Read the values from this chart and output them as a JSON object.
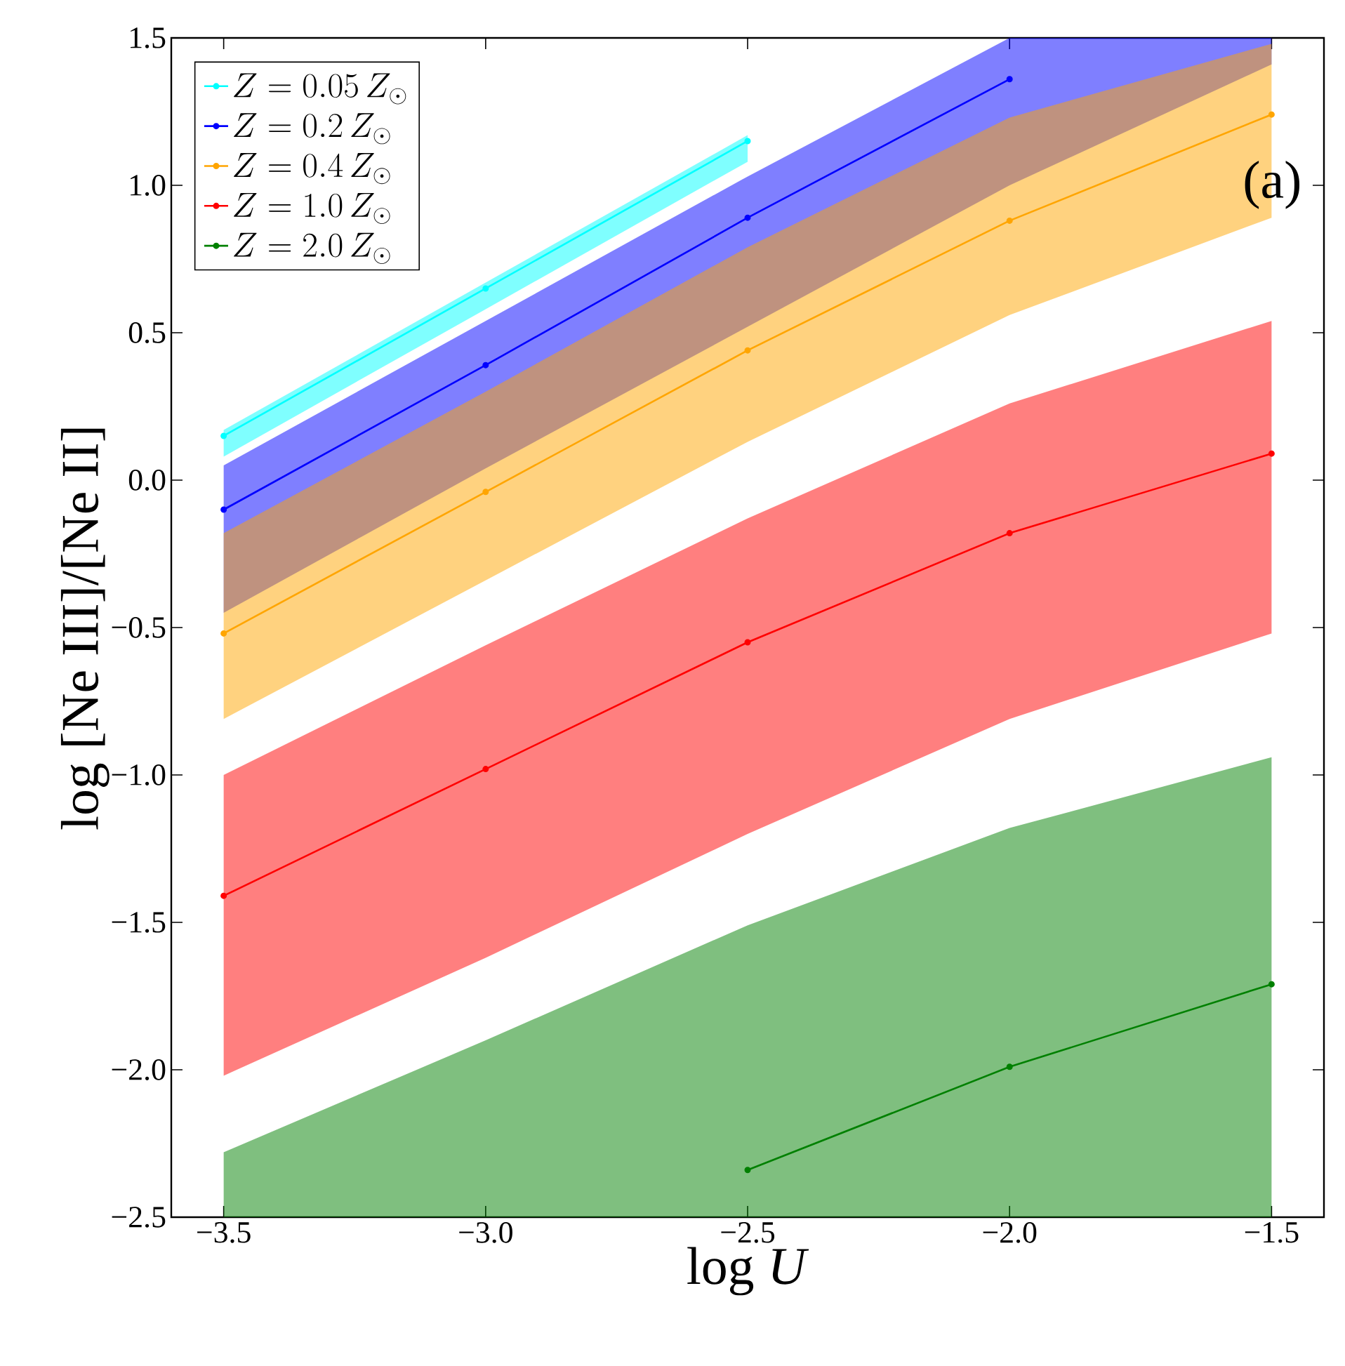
{
  "chart_data": {
    "type": "line",
    "xlabel": "log *U*",
    "ylabel": "log [Ne III]/[Ne II]",
    "x": [
      -3.5,
      -3.0,
      -2.5,
      -2.0,
      -1.5
    ],
    "series": [
      {
        "name": "Z=0.05\\,Z_\\odot",
        "color": "#00ffff",
        "x": [
          -3.5,
          -3.0,
          -2.5
        ],
        "values": [
          0.15,
          0.65,
          1.15
        ],
        "lower": [
          0.08,
          0.58,
          1.08
        ],
        "upper": [
          0.17,
          0.67,
          1.17
        ]
      },
      {
        "name": "Z=0.2\\,Z_\\odot",
        "color": "#0000ff",
        "values": [
          -0.1,
          0.39,
          0.89,
          1.36,
          null
        ],
        "lower": [
          -0.45,
          0.04,
          0.52,
          1.0,
          1.41
        ],
        "upper": [
          0.05,
          0.54,
          1.03,
          1.5,
          1.5
        ]
      },
      {
        "name": "Z=0.4\\,Z_\\odot",
        "color": "#ffa500",
        "values": [
          -0.52,
          -0.04,
          0.44,
          0.88,
          1.24
        ],
        "lower": [
          -0.81,
          -0.34,
          0.13,
          0.56,
          0.89
        ],
        "upper": [
          -0.18,
          0.3,
          0.79,
          1.23,
          1.48
        ]
      },
      {
        "name": "Z=1.0\\,Z_\\odot",
        "color": "#ff0000",
        "values": [
          -1.41,
          -0.98,
          -0.55,
          -0.18,
          0.09
        ],
        "lower": [
          -2.02,
          -1.62,
          -1.2,
          -0.81,
          -0.52
        ],
        "upper": [
          -1.0,
          -0.56,
          -0.13,
          0.26,
          0.54
        ]
      },
      {
        "name": "Z=2.0\\,Z_\\odot",
        "color": "#008000",
        "values": [
          null,
          null,
          -2.34,
          -1.99,
          -1.71
        ],
        "lower": [
          -2.5,
          -2.5,
          -2.5,
          -2.5,
          -2.5
        ],
        "upper": [
          -2.28,
          -1.9,
          -1.51,
          -1.18,
          -0.94
        ]
      }
    ],
    "xlim": [
      -3.6,
      -1.4
    ],
    "ylim": [
      -2.5,
      1.5
    ],
    "xticks": [
      {
        "value": -3.5,
        "label": "−3.5"
      },
      {
        "value": -3.0,
        "label": "−3.0"
      },
      {
        "value": -2.5,
        "label": "−2.5"
      },
      {
        "value": -2.0,
        "label": "−2.0"
      },
      {
        "value": -1.5,
        "label": "−1.5"
      }
    ],
    "yticks": [
      {
        "value": -2.5,
        "label": "−2.5"
      },
      {
        "value": -2.0,
        "label": "−2.0"
      },
      {
        "value": -1.5,
        "label": "−1.5"
      },
      {
        "value": -1.0,
        "label": "−1.0"
      },
      {
        "value": -0.5,
        "label": "−0.5"
      },
      {
        "value": 0.0,
        "label": "0.0"
      },
      {
        "value": 0.5,
        "label": "0.5"
      },
      {
        "value": 1.0,
        "label": "1.0"
      },
      {
        "value": 1.5,
        "label": "1.5"
      }
    ],
    "annotations": [
      "(a)"
    ],
    "legend": "top left",
    "marker": "circle",
    "line_style": "solid",
    "grid": false
  }
}
